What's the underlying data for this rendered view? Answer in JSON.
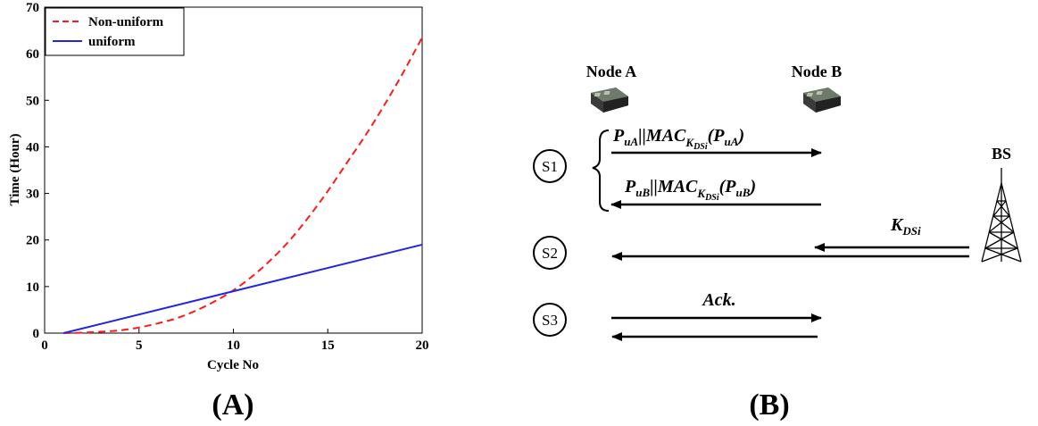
{
  "chart_data": {
    "type": "line",
    "xlabel": "Cycle No",
    "ylabel": "Time (Hour)",
    "xlim": [
      0,
      20
    ],
    "ylim": [
      0,
      70
    ],
    "xticks": [
      0,
      5,
      10,
      15,
      20
    ],
    "yticks": [
      0,
      10,
      20,
      30,
      40,
      50,
      60,
      70
    ],
    "grid": false,
    "legend_position": "top-left",
    "series": [
      {
        "name": "Non-uniform",
        "color": "#ff1a1a",
        "style": "dashed",
        "x": [
          1,
          2,
          3,
          4,
          5,
          6,
          7,
          8,
          9,
          10,
          11,
          12,
          13,
          14,
          15,
          16,
          17,
          18,
          19,
          20
        ],
        "y": [
          0,
          0.1,
          0.3,
          0.6,
          1.2,
          2.1,
          3.2,
          4.8,
          6.8,
          9.2,
          12.2,
          15.8,
          20.0,
          25.0,
          30.5,
          36.5,
          42.5,
          49.0,
          56.0,
          63.5
        ]
      },
      {
        "name": "uniform",
        "color": "#2323e6",
        "style": "solid",
        "x": [
          1,
          20
        ],
        "y": [
          0,
          19
        ]
      }
    ]
  },
  "panels": {
    "a_label": "(A)",
    "b_label": "(B)"
  },
  "diagram": {
    "node_a": "Node A",
    "node_b": "Node B",
    "bs": "BS",
    "steps": [
      "S1",
      "S2",
      "S3"
    ],
    "ack": "Ack."
  },
  "colors": {
    "axis": "#000000",
    "arrow": "#000000"
  },
  "icons": {
    "sensor_node": "sensor-node-icon",
    "tower": "base-station-tower-icon"
  }
}
